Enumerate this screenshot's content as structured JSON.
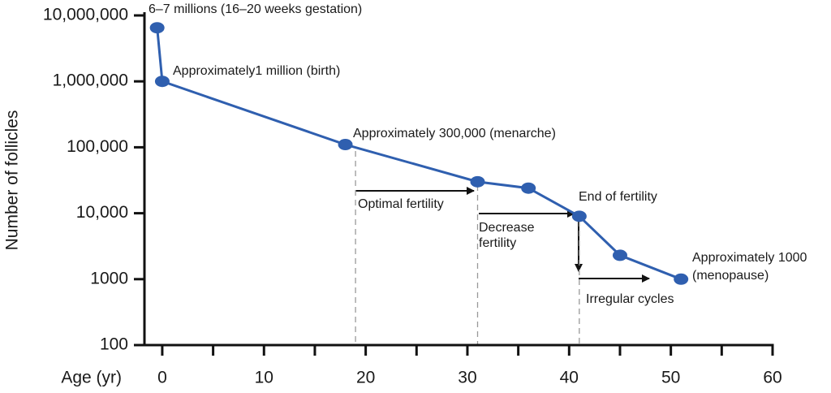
{
  "chart_data": {
    "type": "line",
    "x_label": "Age (yr)",
    "y_label": "Number of follicles",
    "x": [
      -0.5,
      0,
      18,
      31,
      36,
      41,
      45,
      51
    ],
    "series": [
      {
        "color": "#2f5faf",
        "values": [
          6500000,
          1000000,
          110000,
          30000,
          24000,
          9000,
          2300,
          1000
        ]
      }
    ],
    "log_y": true,
    "xlim": [
      -1.75,
      60
    ],
    "xticks": [
      0,
      10,
      20,
      30,
      40,
      50,
      60
    ],
    "xminor_ticks": [
      5,
      15,
      25,
      35,
      45,
      55
    ],
    "ylim": [
      100,
      10000000
    ],
    "yticks": [
      100,
      1000,
      {
        "value": 10000,
        "label": "10,000"
      },
      {
        "value": 100000,
        "label": "100,000"
      },
      {
        "value": 1000000,
        "label": "1,000,000"
      },
      {
        "value": 10000000,
        "label": "10,000,000"
      }
    ],
    "reference_lines": [
      19,
      31,
      41
    ],
    "annotations": [
      "6–7 millions (16–20 weeks gestation)",
      "Approximately1 million (birth)",
      "Approximately 300,000 (menarche)",
      "Optimal fertility",
      "Decrease",
      "fertility",
      "End of fertility",
      "Approximately 1000",
      "(menopause)",
      "Irregular cycles"
    ]
  }
}
